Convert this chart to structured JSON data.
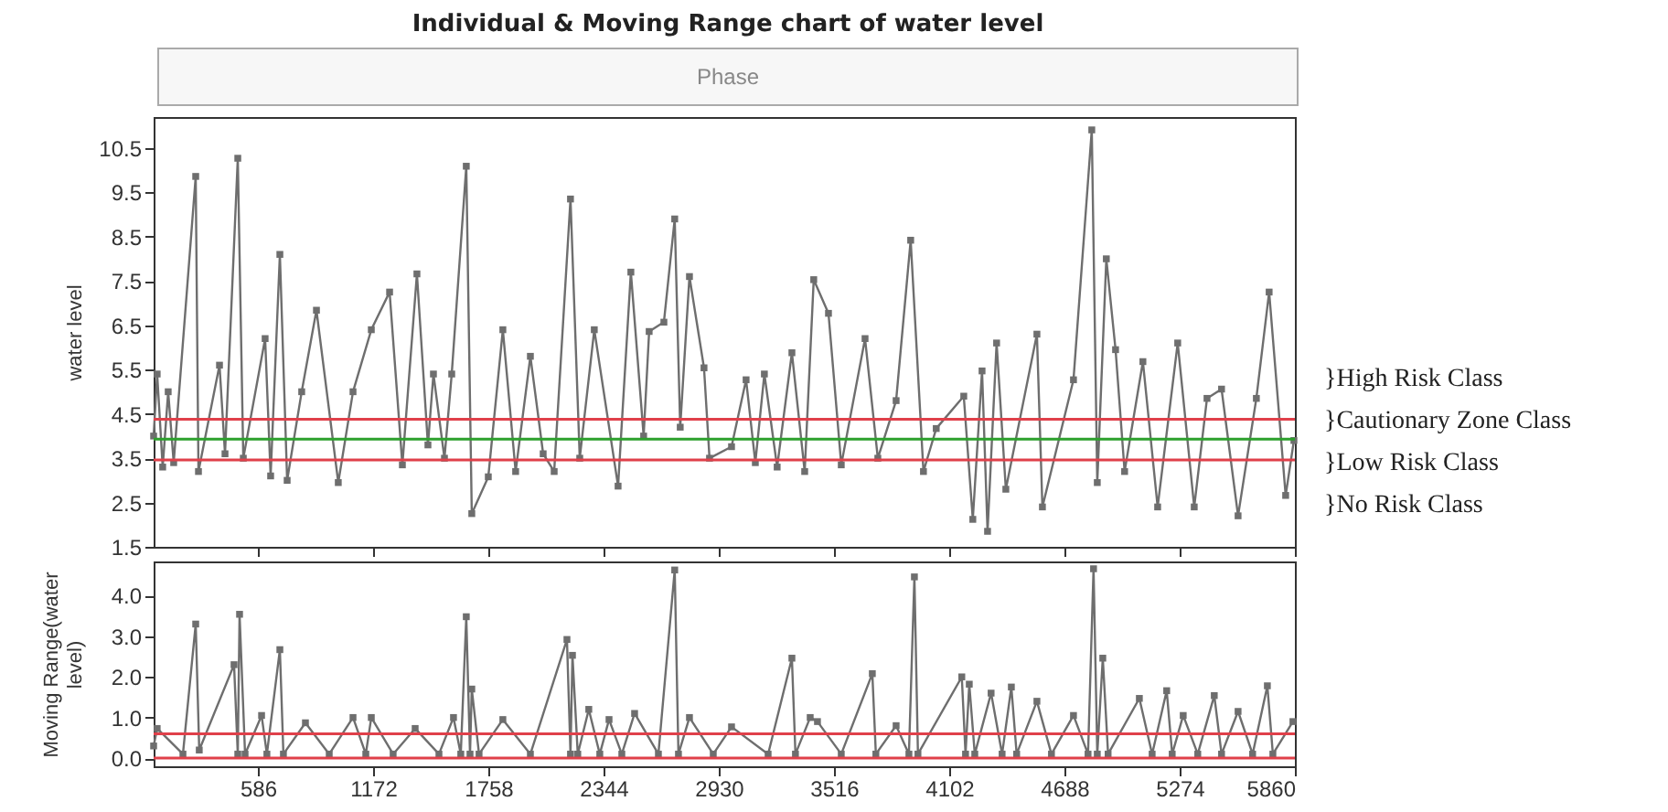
{
  "chart_data": [
    {
      "type": "line",
      "title": "Individual & Moving Range chart of water level",
      "ylabel": "water level",
      "annotations": [
        "Phase",
        "}High Risk Class",
        "}Cautionary Zone Class",
        "}Low Risk Class",
        "}No Risk Class"
      ],
      "xlim": [
        56,
        5860
      ],
      "xticks": [
        586,
        1172,
        1758,
        2344,
        2930,
        3516,
        4102,
        4688,
        5274,
        5860
      ],
      "ylim": [
        1.5,
        11.2
      ],
      "yticks": [
        1.5,
        2.5,
        3.5,
        4.5,
        5.5,
        6.5,
        7.5,
        8.5,
        9.5,
        10.5
      ],
      "tick_labels": "y",
      "marker": "square",
      "grid": false,
      "series": [
        {
          "color": "#6e6e6e",
          "x": [
            56,
            74,
            102,
            130,
            158,
            270,
            284,
            391,
            419,
            484,
            512,
            623,
            651,
            698,
            735,
            809,
            884,
            995,
            1070,
            1163,
            1256,
            1321,
            1395,
            1451,
            1479,
            1535,
            1572,
            1646,
            1674,
            1758,
            1832,
            1897,
            1972,
            2037,
            2093,
            2176,
            2223,
            2297,
            2418,
            2483,
            2548,
            2576,
            2651,
            2706,
            2734,
            2781,
            2855,
            2883,
            2995,
            3069,
            3116,
            3162,
            3227,
            3302,
            3367,
            3413,
            3488,
            3553,
            3674,
            3739,
            3832,
            3906,
            3971,
            4036,
            4176,
            4222,
            4269,
            4297,
            4343,
            4390,
            4548,
            4576,
            4734,
            4827,
            4855,
            4901,
            4948,
            4994,
            5087,
            5162,
            5264,
            5348,
            5413,
            5487,
            5571,
            5664,
            5729,
            5813,
            5855
          ],
          "values": [
            4.0,
            5.4,
            3.3,
            5.0,
            3.4,
            9.86,
            3.2,
            5.6,
            3.6,
            10.27,
            3.5,
            6.2,
            3.1,
            8.1,
            3.0,
            5.0,
            6.84,
            2.95,
            5.0,
            6.4,
            7.25,
            3.35,
            7.66,
            3.8,
            5.4,
            3.5,
            5.4,
            10.09,
            2.25,
            3.08,
            6.4,
            3.2,
            5.8,
            3.6,
            3.2,
            9.35,
            3.5,
            6.4,
            2.87,
            7.7,
            4.0,
            6.36,
            6.57,
            8.9,
            4.2,
            7.6,
            5.54,
            3.5,
            3.76,
            5.27,
            3.4,
            5.4,
            3.3,
            5.88,
            3.2,
            7.53,
            6.77,
            3.35,
            6.2,
            3.5,
            4.8,
            8.42,
            3.2,
            4.17,
            4.9,
            2.12,
            5.47,
            1.85,
            6.1,
            2.8,
            6.3,
            2.4,
            5.27,
            10.91,
            2.95,
            8.0,
            5.95,
            3.2,
            5.68,
            2.4,
            6.1,
            2.4,
            4.85,
            5.06,
            2.2,
            4.85,
            7.25,
            2.66,
            3.9
          ]
        }
      ],
      "ref_lines": [
        {
          "axis": "y",
          "value": 4.38,
          "color": "#e0404a"
        },
        {
          "axis": "y",
          "value": 3.93,
          "color": "#2ca02c"
        },
        {
          "axis": "y",
          "value": 3.46,
          "color": "#e0404a"
        }
      ]
    },
    {
      "type": "line",
      "ylabel": "Moving Range(water level)",
      "xlim": [
        56,
        5860
      ],
      "xticks": [
        586,
        1172,
        1758,
        2344,
        2930,
        3516,
        4102,
        4688,
        5274,
        5860
      ],
      "ylim": [
        -0.2,
        4.84
      ],
      "yticks": [
        {
          "value": 0,
          "label": "0.0"
        },
        {
          "value": 1,
          "label": "1.0"
        },
        {
          "value": 2,
          "label": "2.0"
        },
        {
          "value": 3,
          "label": "3.0"
        },
        {
          "value": 4,
          "label": "4.0"
        }
      ],
      "marker": "square",
      "grid": false,
      "series": [
        {
          "color": "#6e6e6e",
          "x": [
            56,
            74,
            205,
            270,
            288,
            465,
            484,
            493,
            521,
            605,
            632,
            698,
            716,
            828,
            949,
            1070,
            1135,
            1163,
            1274,
            1386,
            1507,
            1581,
            1618,
            1646,
            1665,
            1674,
            1711,
            1832,
            1972,
            2158,
            2176,
            2186,
            2213,
            2269,
            2325,
            2372,
            2437,
            2502,
            2623,
            2706,
            2725,
            2781,
            2902,
            2995,
            3181,
            3302,
            3320,
            3395,
            3432,
            3553,
            3711,
            3729,
            3832,
            3897,
            3925,
            3943,
            4166,
            4185,
            4204,
            4232,
            4315,
            4371,
            4418,
            4445,
            4548,
            4622,
            4734,
            4808,
            4836,
            4855,
            4883,
            4910,
            5069,
            5134,
            5208,
            5236,
            5292,
            5366,
            5450,
            5487,
            5571,
            5645,
            5720,
            5748,
            5850
          ],
          "values": [
            0.3,
            0.73,
            0.1,
            3.3,
            0.2,
            2.3,
            0.1,
            3.54,
            0.1,
            1.05,
            0.1,
            2.67,
            0.1,
            0.87,
            0.1,
            1.0,
            0.1,
            1.0,
            0.1,
            0.73,
            0.1,
            1.0,
            0.1,
            3.48,
            0.1,
            1.7,
            0.1,
            0.95,
            0.1,
            2.92,
            0.1,
            2.53,
            0.1,
            1.2,
            0.1,
            0.95,
            0.1,
            1.1,
            0.1,
            4.63,
            0.1,
            1.0,
            0.1,
            0.77,
            0.1,
            2.46,
            0.1,
            1.0,
            0.9,
            0.1,
            2.08,
            0.1,
            0.8,
            0.1,
            4.46,
            0.1,
            2.0,
            0.1,
            1.82,
            0.1,
            1.6,
            0.1,
            1.75,
            0.1,
            1.4,
            0.1,
            1.05,
            0.1,
            4.66,
            0.1,
            2.46,
            0.1,
            1.47,
            0.1,
            1.66,
            0.1,
            1.05,
            0.1,
            1.54,
            0.1,
            1.15,
            0.1,
            1.78,
            0.1,
            0.9
          ]
        }
      ],
      "ref_lines": [
        {
          "axis": "y",
          "value": 0.6,
          "color": "#e0404a"
        },
        {
          "axis": "y",
          "value": 0,
          "color": "#e0404a"
        }
      ]
    }
  ]
}
